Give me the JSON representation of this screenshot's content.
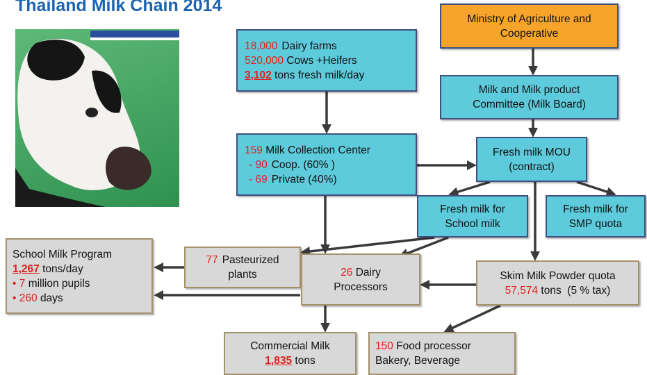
{
  "title": "Thailand Milk Chain 2014",
  "nodes": [
    {
      "lines": [
        [
          "18,000",
          "Dairy farms"
        ],
        [
          "520,000",
          "Cows +Heifers"
        ],
        [
          "3,102",
          "tons fresh milk/day"
        ]
      ]
    },
    {
      "lines": [
        [
          "Ministry of Agriculture and"
        ],
        [
          "Cooperative"
        ]
      ]
    },
    {
      "lines": [
        [
          "Milk and Milk product"
        ],
        [
          "Committee (Milk Board)"
        ]
      ]
    },
    {
      "lines": [
        [
          "159",
          "Milk Collection Center"
        ],
        [
          "- 90",
          "Coop. (60% )"
        ],
        [
          "- 69",
          "Private (40%)"
        ]
      ]
    },
    {
      "lines": [
        [
          "Fresh milk MOU"
        ],
        [
          "(contract)"
        ]
      ]
    },
    {
      "lines": [
        [
          "Fresh milk for"
        ],
        [
          "School milk"
        ]
      ]
    },
    {
      "lines": [
        [
          "Fresh milk for"
        ],
        [
          "SMP quota"
        ]
      ]
    },
    {
      "lines": [
        [
          "School Milk Program"
        ],
        [
          "1,267",
          "tons/day"
        ],
        [
          "•",
          "7",
          "million pupils"
        ],
        [
          "•",
          "260",
          "days"
        ]
      ]
    },
    {
      "lines": [
        [
          "77",
          "Pasteurized"
        ],
        [
          "plants"
        ]
      ]
    },
    {
      "lines": [
        [
          "26",
          "Dairy"
        ],
        [
          "Processors"
        ]
      ]
    },
    {
      "lines": [
        [
          "Skim Milk Powder quota"
        ],
        [
          "57,574",
          "tons  (5 % tax)"
        ]
      ]
    },
    {
      "lines": [
        [
          "Commercial Milk"
        ],
        [
          "1,835",
          "tons"
        ]
      ]
    },
    {
      "lines": [
        [
          "150",
          "Food processor"
        ],
        [
          "Bakery, Beverage"
        ]
      ]
    }
  ]
}
